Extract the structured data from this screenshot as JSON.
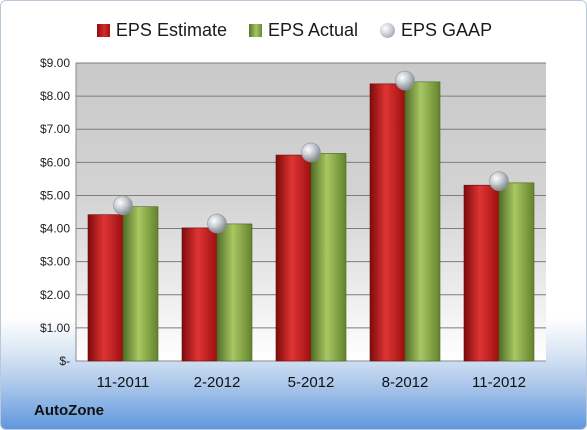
{
  "chart_data": {
    "type": "bar",
    "categories": [
      "11-2011",
      "2-2012",
      "5-2012",
      "8-2012",
      "11-2012"
    ],
    "series": [
      {
        "name": "EPS Estimate",
        "values": [
          4.42,
          4.02,
          6.22,
          8.37,
          5.31
        ],
        "color": "#c41e1e"
      },
      {
        "name": "EPS Actual",
        "values": [
          4.66,
          4.14,
          6.27,
          8.43,
          5.38
        ],
        "color": "#8fae4d"
      },
      {
        "name": "EPS GAAP",
        "values": [
          4.7,
          4.15,
          6.3,
          8.47,
          5.43
        ],
        "color": "#b0b6bd"
      }
    ],
    "y_ticks": [
      "$-",
      "$1.00",
      "$2.00",
      "$3.00",
      "$4.00",
      "$5.00",
      "$6.00",
      "$7.00",
      "$8.00",
      "$9.00"
    ],
    "ylim": [
      0,
      9
    ],
    "grid": true,
    "legend_position": "top"
  },
  "company": "AutoZone"
}
